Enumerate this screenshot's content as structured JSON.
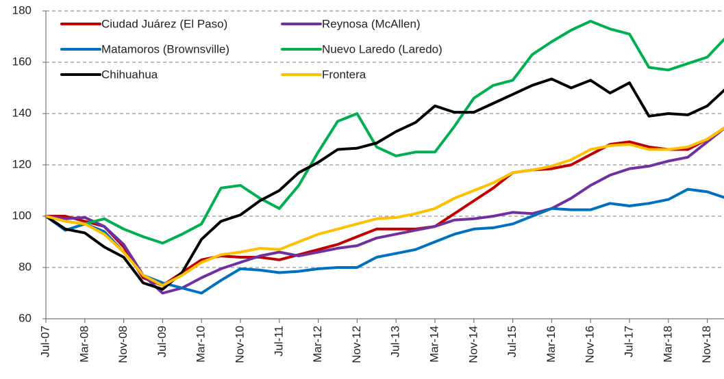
{
  "chart_data": {
    "type": "line",
    "categories": [
      "Jul-07",
      null,
      "Mar-08",
      null,
      "Nov-08",
      null,
      "Jul-09",
      null,
      "Mar-10",
      null,
      "Nov-10",
      null,
      "Jul-11",
      null,
      "Mar-12",
      null,
      "Nov-12",
      null,
      "Jul-13",
      null,
      "Mar-14",
      null,
      "Nov-14",
      null,
      "Jul-15",
      null,
      "Mar-16",
      null,
      "Nov-16",
      null,
      "Jul-17",
      null,
      "Mar-18",
      null,
      "Nov-18",
      null
    ],
    "series": [
      {
        "name": "Ciudad Juárez (El Paso)",
        "color": "#c00000",
        "values": [
          100,
          100,
          98,
          96,
          88,
          76,
          73,
          78,
          83,
          84.5,
          84,
          84,
          83,
          85,
          87,
          89,
          92,
          95,
          95,
          95,
          96,
          101,
          106,
          111,
          117,
          118,
          118.5,
          120,
          124,
          128,
          129,
          127,
          126,
          126,
          130,
          135
        ]
      },
      {
        "name": "Reynosa (McAllen)",
        "color": "#7030a0",
        "values": [
          100,
          99,
          99.5,
          96,
          89,
          77,
          70,
          72,
          76,
          79.5,
          82,
          84.5,
          86,
          84.5,
          86,
          87.5,
          88.5,
          91.5,
          93,
          94.5,
          96,
          98.5,
          99,
          100,
          101.5,
          101,
          103,
          107,
          112,
          116,
          118.5,
          119.5,
          121.5,
          123,
          129,
          135
        ]
      },
      {
        "name": "Matamoros (Brownsville)",
        "color": "#0070c0",
        "values": [
          100,
          94.5,
          97,
          94,
          86,
          77,
          74,
          72,
          70,
          75,
          79.5,
          79,
          78,
          78.5,
          79.5,
          80,
          80,
          84,
          85.5,
          87,
          90,
          93,
          95,
          95.5,
          97,
          100,
          103,
          102.5,
          102.5,
          105,
          104,
          105,
          106.5,
          110.5,
          109.5,
          107
        ]
      },
      {
        "name": "Nuevo Laredo (Laredo)",
        "color": "#00b050",
        "values": [
          100,
          98,
          97,
          99,
          95,
          92,
          89.5,
          93,
          97,
          111,
          112,
          107,
          103,
          112,
          125,
          137,
          140,
          127,
          123.5,
          125,
          125,
          135,
          146,
          151,
          153,
          163,
          168,
          172.5,
          176,
          173,
          171,
          158,
          157,
          159.5,
          162,
          170
        ]
      },
      {
        "name": "Chihuahua",
        "color": "#000000",
        "values": [
          100,
          95,
          93.5,
          88,
          84,
          74,
          71.5,
          78,
          91,
          98,
          100.5,
          106,
          110,
          117,
          121,
          126,
          126.5,
          128.5,
          133,
          136.5,
          143,
          140.5,
          140.5,
          144,
          147.5,
          151,
          153.5,
          150,
          153,
          148,
          152,
          139,
          140,
          139.5,
          143,
          150
        ]
      },
      {
        "name": "Frontera",
        "color": "#ffc000",
        "values": [
          100,
          98,
          97,
          93,
          86,
          77,
          73,
          77,
          82,
          85,
          86,
          87.5,
          87,
          90,
          93,
          95,
          97,
          99,
          99.5,
          101,
          103,
          107,
          110,
          113,
          117,
          118,
          119.5,
          122,
          126,
          127.5,
          128,
          126,
          126,
          127,
          130,
          135
        ]
      }
    ],
    "ylim": [
      60,
      180
    ],
    "yticks": [
      60,
      80,
      100,
      120,
      140,
      160,
      180
    ],
    "grid": true
  }
}
